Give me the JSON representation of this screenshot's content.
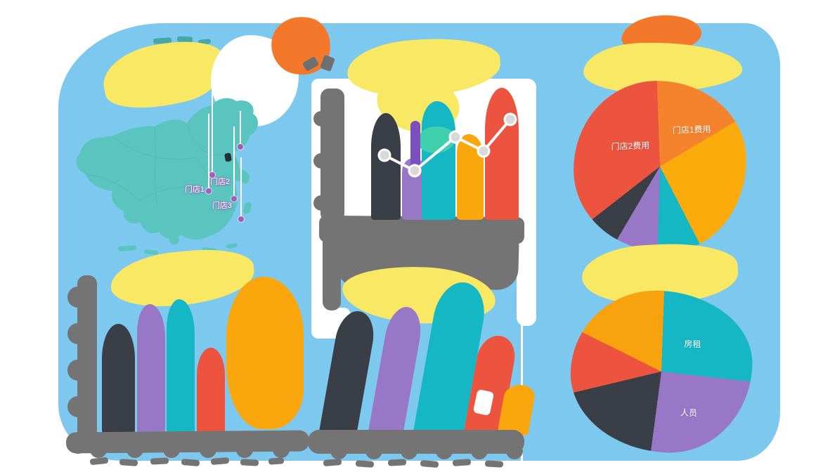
{
  "page": {
    "background": "#FFFFFF",
    "board_color": "#7DC8EF"
  },
  "palette": {
    "yellow": "#F9E863",
    "orange_blob": "#F4782B",
    "amber": "#FAA70E",
    "red": "#ED5440",
    "teal": "#16B7C5",
    "light_green": "#3FD0AE",
    "purple": "#9877C7",
    "purple_dark": "#7C4FBF",
    "dark": "#3A3E47",
    "gray_axis": "#747474",
    "map_teal": "#5AC5BF",
    "marker_purple": "#A75BBE",
    "trend_line": "#FFFFFF",
    "trend_marker_fill": "#D9D9D9"
  },
  "chart_data": [
    {
      "id": "store-map",
      "type": "scatter",
      "title": "",
      "map_region": "China",
      "points": [
        {
          "name": "门店1"
        },
        {
          "name": "门店2"
        },
        {
          "name": "门店3"
        },
        {
          "name": ""
        },
        {
          "name": ""
        }
      ],
      "labels_illegible": true
    },
    {
      "id": "top-middle-bar-line",
      "type": "bar",
      "categories": [
        "",
        "",
        "",
        "",
        ""
      ],
      "series": [
        {
          "name": "bars",
          "type": "bar",
          "values": [
            81,
            47,
            90,
            65,
            100
          ],
          "colors": [
            "#3A3E47",
            "#9877C7",
            "#16B7C5",
            "#FAA70E",
            "#ED5440"
          ]
        },
        {
          "name": "trend",
          "type": "line",
          "values": [
            49,
            37,
            63,
            52,
            76
          ],
          "color": "#FFFFFF"
        }
      ],
      "ylim": [
        0,
        100
      ],
      "axis_labels_illegible": true
    },
    {
      "id": "store-expense-pie",
      "type": "pie",
      "slices": [
        {
          "label": "门店1费用",
          "value": 17,
          "color": "#F5832D"
        },
        {
          "label": "",
          "value": 26,
          "color": "#FBAC0C"
        },
        {
          "label": "",
          "value": 8,
          "color": "#16B7C5"
        },
        {
          "label": "",
          "value": 8,
          "color": "#9877C7"
        },
        {
          "label": "",
          "value": 6,
          "color": "#3A3E47"
        },
        {
          "label": "门店2费用",
          "value": 35,
          "color": "#ED5440"
        }
      ],
      "legend": "none"
    },
    {
      "id": "bottom-left-bar",
      "type": "bar",
      "categories": [
        "",
        "",
        "",
        "",
        ""
      ],
      "series": [
        {
          "name": "bars",
          "type": "bar",
          "values": [
            72,
            85,
            88,
            56,
            100
          ],
          "colors": [
            "#3A3E47",
            "#9877C7",
            "#16B7C5",
            "#ED5440",
            "#FAA70E"
          ]
        }
      ],
      "ylim": [
        0,
        100
      ],
      "axis_labels_illegible": true
    },
    {
      "id": "bottom-middle-bar",
      "type": "bar",
      "categories": [
        "",
        "",
        "",
        "",
        ""
      ],
      "series": [
        {
          "name": "bars",
          "type": "bar",
          "values": [
            81,
            84,
            100,
            65,
            33
          ],
          "colors": [
            "#3A3E47",
            "#9877C7",
            "#16B7C5",
            "#ED5440",
            "#FAA70E"
          ]
        }
      ],
      "ylim": [
        0,
        100
      ],
      "axis_labels_illegible": true
    },
    {
      "id": "cost-breakdown-pie",
      "type": "pie",
      "slices": [
        {
          "label": "房租",
          "value": 26,
          "color": "#16B7C5"
        },
        {
          "label": "人员",
          "value": 25,
          "color": "#9877C7"
        },
        {
          "label": "",
          "value": 19,
          "color": "#3A3E47"
        },
        {
          "label": "",
          "value": 11,
          "color": "#ED5440"
        },
        {
          "label": "",
          "value": 18,
          "color": "#F8A20D"
        }
      ],
      "legend": "none"
    }
  ]
}
